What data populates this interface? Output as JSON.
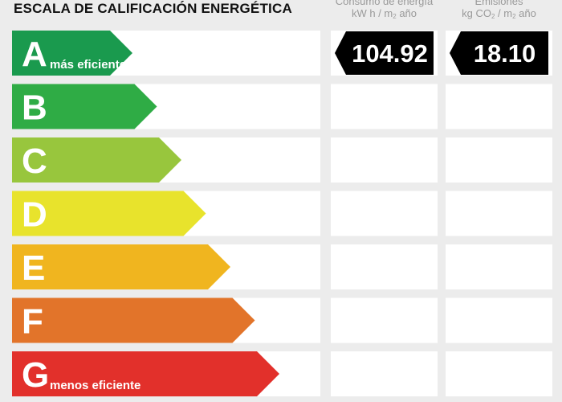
{
  "header": {
    "title": "ESCALA DE CALIFICACIÓN ENERGÉTICA",
    "col_consumo_l1": "Consumo de energía",
    "col_consumo_l2_a": "kW h / m",
    "col_consumo_l2_sub": "2",
    "col_consumo_l2_b": " año",
    "col_emisiones_l1": "Emisiones",
    "col_emisiones_l2_a": "kg CO",
    "col_emisiones_l2_sub": "2",
    "col_emisiones_l2_mid": " / m",
    "col_emisiones_l2_sub2": "2",
    "col_emisiones_l2_b": " año"
  },
  "chart_data": {
    "type": "table",
    "title": "ESCALA DE CALIFICACIÓN ENERGÉTICA",
    "columns": [
      "Consumo de energía kW h / m2 año",
      "Emisiones kg CO2 / m2 año"
    ],
    "ratings": [
      {
        "letter": "A",
        "sublabel": "más eficiente",
        "color": "#1a9a4e"
      },
      {
        "letter": "B",
        "sublabel": "",
        "color": "#2fac45"
      },
      {
        "letter": "C",
        "sublabel": "",
        "color": "#98c63d"
      },
      {
        "letter": "D",
        "sublabel": "",
        "color": "#e8e32c"
      },
      {
        "letter": "E",
        "sublabel": "",
        "color": "#f0b51f"
      },
      {
        "letter": "F",
        "sublabel": "",
        "color": "#e2742a"
      },
      {
        "letter": "G",
        "sublabel": "menos eficiente",
        "color": "#e2302b"
      }
    ],
    "consumo": {
      "rating": "A",
      "value": "104.92"
    },
    "emisiones": {
      "rating": "A",
      "value": "18.10"
    },
    "indicator_color": "#000000"
  }
}
